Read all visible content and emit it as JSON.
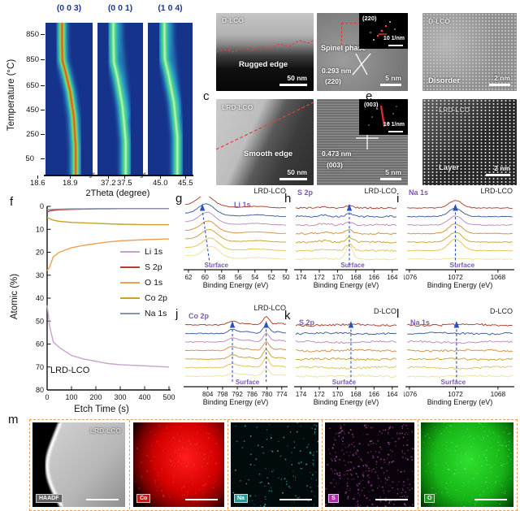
{
  "figure": {
    "letters": {
      "c": "c",
      "e": "e",
      "f": "f",
      "g": "g",
      "h": "h",
      "i": "i",
      "j": "j",
      "k": "k",
      "l": "l",
      "m": "m"
    }
  },
  "colors": {
    "heatmap_bg": "#16338c",
    "band_cyan": "#3ae0ea",
    "band_green": "#52dc55",
    "band_yellow": "#d8e838",
    "band_red": "#e83418",
    "band_pale": "#c9f5e0",
    "arrow": "#2a50c0",
    "purple": "#7a5ab5",
    "xps_curves": [
      "#a8402e",
      "#3c5b9e",
      "#b78cba",
      "#d28f45",
      "#c9a32f",
      "#dfc356",
      "#ece0a0"
    ],
    "eds_border": "#e0a060"
  },
  "tem": {
    "b": {
      "sample": "D-LCO",
      "note": "Rugged edge",
      "scale": "50 nm"
    },
    "spinel": {
      "phase": "Spinel phase",
      "d": "0.293 nm",
      "plane": "(220)",
      "inset_plane": "(220)",
      "inset_scale": "10 1/nm",
      "scale": "5 nm"
    },
    "disorder": {
      "sample": "D-LCO",
      "note": "Disorder",
      "scale": "2 nm"
    },
    "c": {
      "sample": "LRD-LCO",
      "note": "Smooth edge",
      "scale": "50 nm"
    },
    "d003": {
      "d": "0.473 nm",
      "plane": "(003)",
      "inset_plane": "(003)",
      "inset_scale": "10 1/nm",
      "scale": "5 nm"
    },
    "e": {
      "sample": "LRD-LCO",
      "note": "Layer",
      "scale": "2 nm"
    }
  },
  "eds": {
    "sample": "LRD-LCO",
    "images": [
      {
        "label": "HAADF",
        "badge_bg": "#606060",
        "type": "haadf"
      },
      {
        "label": "Co",
        "badge_bg": "#d41414",
        "type": "red-map"
      },
      {
        "label": "Na",
        "badge_bg": "#1f9e9e",
        "type": "cyan-speckle"
      },
      {
        "label": "S",
        "badge_bg": "#b428b4",
        "type": "magenta-speckle"
      },
      {
        "label": "O",
        "badge_bg": "#18a018",
        "type": "green-map"
      }
    ]
  },
  "chart_data": [
    {
      "id": "a",
      "type": "heatmap",
      "ylabel": "Temperature (°C)",
      "yticks": [
        "850",
        "850",
        "650",
        "450",
        "250",
        "50"
      ],
      "xlabel": "2Theta (degree)",
      "break_mark": "∕∕",
      "xticks_flat": [
        "18.6",
        "18.9",
        "37.2",
        "37.5",
        "45.0",
        "45.5"
      ],
      "strips": [
        {
          "label": "(0 0 3)",
          "hot": true,
          "band": [
            [
              0.64,
              1.0
            ],
            [
              0.64,
              0.82
            ],
            [
              0.6,
              0.62
            ],
            [
              0.52,
              0.45
            ],
            [
              0.42,
              0.32
            ],
            [
              0.36,
              0.25
            ],
            [
              0.35,
              0.14
            ],
            [
              0.35,
              0.0
            ]
          ]
        },
        {
          "label": "(0 0 1)",
          "hot": false,
          "band": [
            [
              0.62,
              1.0
            ],
            [
              0.62,
              0.78
            ],
            [
              0.55,
              0.55
            ],
            [
              0.44,
              0.36
            ],
            [
              0.36,
              0.26
            ],
            [
              0.35,
              0.12
            ],
            [
              0.35,
              0.0
            ]
          ],
          "band2": [
            [
              0.5,
              0.0
            ],
            [
              0.5,
              0.12
            ],
            [
              0.56,
              0.3
            ],
            [
              0.64,
              0.5
            ],
            [
              0.66,
              0.62
            ]
          ]
        },
        {
          "label": "(1 0 4)",
          "hot": false,
          "band": [
            [
              0.66,
              1.0
            ],
            [
              0.66,
              0.75
            ],
            [
              0.58,
              0.52
            ],
            [
              0.46,
              0.34
            ],
            [
              0.38,
              0.24
            ],
            [
              0.37,
              0.1
            ],
            [
              0.37,
              0.0
            ]
          ],
          "band2": [
            [
              0.52,
              0.0
            ],
            [
              0.52,
              0.12
            ],
            [
              0.58,
              0.3
            ],
            [
              0.66,
              0.5
            ],
            [
              0.68,
              0.6
            ]
          ]
        }
      ]
    },
    {
      "id": "f",
      "type": "line",
      "xlabel": "Etch Time  (s)",
      "ylabel": "Atomic (%)",
      "annotation": "LRD-LCO",
      "y_inverted": true,
      "xlim": [
        0,
        500
      ],
      "ylim": [
        0,
        80
      ],
      "xticks": [
        0,
        100,
        200,
        300,
        400,
        500
      ],
      "yticks": [
        0,
        10,
        20,
        30,
        40,
        50,
        60,
        70,
        80
      ],
      "x": [
        0,
        10,
        25,
        50,
        100,
        150,
        200,
        250,
        300,
        400,
        500
      ],
      "series": [
        {
          "name": "Li 1s",
          "color": "#c9a2cc",
          "values": [
            43,
            52,
            59,
            61.5,
            65,
            66.5,
            67.5,
            68.5,
            69,
            69.5,
            70
          ]
        },
        {
          "name": "S 2p",
          "color": "#c23a32",
          "values": [
            2.5,
            2.0,
            1.8,
            1.5,
            1.3,
            1.2,
            1.1,
            1.1,
            1.0,
            1.0,
            1.0
          ]
        },
        {
          "name": "O 1s",
          "color": "#f09f4e",
          "values": [
            28,
            26.5,
            22,
            20,
            18,
            17,
            16.2,
            15.5,
            15,
            14.5,
            14.2
          ]
        },
        {
          "name": "Co 2p",
          "color": "#c9a227",
          "values": [
            5,
            5.3,
            6,
            6.5,
            7,
            7.2,
            7.4,
            7.6,
            7.8,
            8,
            8
          ]
        },
        {
          "name": "Na 1s",
          "color": "#8492b4",
          "values": [
            1.5,
            1.4,
            1.3,
            1.2,
            1.1,
            1.1,
            1.0,
            1.0,
            1.0,
            1.0,
            1.0
          ]
        }
      ]
    },
    {
      "id": "g",
      "type": "xps",
      "species": "Li 1s",
      "sample": "LRD-LCO",
      "xlabel": "Binding Energy (eV)",
      "surface_label": "Surface",
      "surface_fx": 0.26,
      "xticks": [
        "62",
        "60",
        "58",
        "56",
        "54",
        "52",
        "50"
      ],
      "tick_fx": [
        0.06,
        0.215,
        0.37,
        0.525,
        0.68,
        0.835,
        0.97
      ],
      "peaks": [
        {
          "fx": 0.215,
          "w": 0.07,
          "amps": [
            12,
            12,
            12,
            12,
            12,
            12,
            12
          ]
        }
      ],
      "shoulder": true,
      "drift": 0.01,
      "noise": 0.35,
      "flat": false,
      "arrows": [
        {
          "b": 0.26,
          "t": 0.19
        }
      ]
    },
    {
      "id": "h",
      "type": "xps",
      "species": "S 2p",
      "sample": "LRD-LCO",
      "xlabel": "Binding Energy (eV)",
      "surface_label": "Surface",
      "surface_fx": 0.5,
      "xticks": [
        "174",
        "172",
        "170",
        "168",
        "166",
        "164"
      ],
      "tick_fx": [
        0.08,
        0.25,
        0.42,
        0.59,
        0.76,
        0.93
      ],
      "peaks": [
        {
          "fx": 0.53,
          "w": 0.033,
          "amps": [
            3,
            4,
            4,
            5,
            6,
            8,
            16
          ]
        },
        {
          "fx": 0.3,
          "w": 0.05,
          "amps": [
            1.5,
            1.5,
            1.5,
            1.5,
            1.5,
            1.5,
            1
          ]
        }
      ],
      "drift": 0,
      "noise": 1.1,
      "flat": false,
      "arrows": [
        {
          "b": 0.53,
          "t": 0.53
        }
      ]
    },
    {
      "id": "i",
      "type": "xps",
      "species": "Na 1s",
      "sample": "LRD-LCO",
      "xlabel": "Binding Energy (eV)",
      "surface_label": "Surface",
      "surface_fx": 0.46,
      "xticks": [
        "1076",
        "1072",
        "1068"
      ],
      "tick_fx": [
        0.05,
        0.46,
        0.84
      ],
      "peaks": [
        {
          "fx": 0.46,
          "w": 0.06,
          "amps": [
            9,
            10,
            11,
            12,
            12,
            14,
            1
          ]
        }
      ],
      "drift": 0,
      "noise": 0.5,
      "flat": false,
      "arrows": [
        {
          "b": 0.46,
          "t": 0.46
        }
      ]
    },
    {
      "id": "j",
      "type": "xps",
      "species": "Co 2p",
      "sample": "LRD-LCO",
      "xlabel": "Binding Energy (eV)",
      "surface_label": "Surface",
      "surface_fx": 0.55,
      "xticks": [
        "804",
        "798",
        "792",
        "786",
        "780",
        "774"
      ],
      "tick_fx": [
        0.24,
        0.378,
        0.516,
        0.654,
        0.792,
        0.93
      ],
      "peaks": [
        {
          "fx": 0.785,
          "w": 0.028,
          "amps": [
            10,
            10,
            11,
            11,
            12,
            12,
            10
          ]
        },
        {
          "fx": 0.47,
          "w": 0.04,
          "amps": [
            5,
            5,
            5,
            5,
            5,
            5,
            4
          ]
        },
        {
          "fx": 0.6,
          "w": 0.06,
          "amps": [
            2,
            2,
            2,
            2,
            2,
            2,
            2
          ]
        },
        {
          "fx": 0.9,
          "w": 0.05,
          "amps": [
            2,
            2,
            2,
            2,
            2,
            2,
            2
          ]
        }
      ],
      "drift": 0,
      "noise": 0.6,
      "flat": false,
      "arrows": [
        {
          "b": 0.47,
          "t": 0.47
        },
        {
          "b": 0.785,
          "t": 0.785
        }
      ]
    },
    {
      "id": "k",
      "type": "xps",
      "species": "S 2p",
      "sample": "D-LCO",
      "xlabel": "Binding Energy (eV)",
      "surface_label": "Surface",
      "surface_fx": 0.42,
      "xticks": [
        "174",
        "172",
        "170",
        "168",
        "166",
        "164"
      ],
      "tick_fx": [
        0.08,
        0.25,
        0.42,
        0.59,
        0.76,
        0.93
      ],
      "peaks": [],
      "drift": 0,
      "noise": 1.2,
      "flat": true,
      "arrows": [
        {
          "b": 0.545,
          "t": 0.545
        }
      ]
    },
    {
      "id": "l",
      "type": "xps",
      "species": "Na 1s",
      "sample": "D-LCO",
      "xlabel": "Binding Energy (eV)",
      "surface_label": "Surface",
      "surface_fx": 0.38,
      "xticks": [
        "1076",
        "1072",
        "1068"
      ],
      "tick_fx": [
        0.05,
        0.46,
        0.84
      ],
      "peaks": [],
      "drift": 0,
      "noise": 1.2,
      "flat": true,
      "arrows": [
        {
          "b": 0.47,
          "t": 0.47
        }
      ]
    }
  ]
}
